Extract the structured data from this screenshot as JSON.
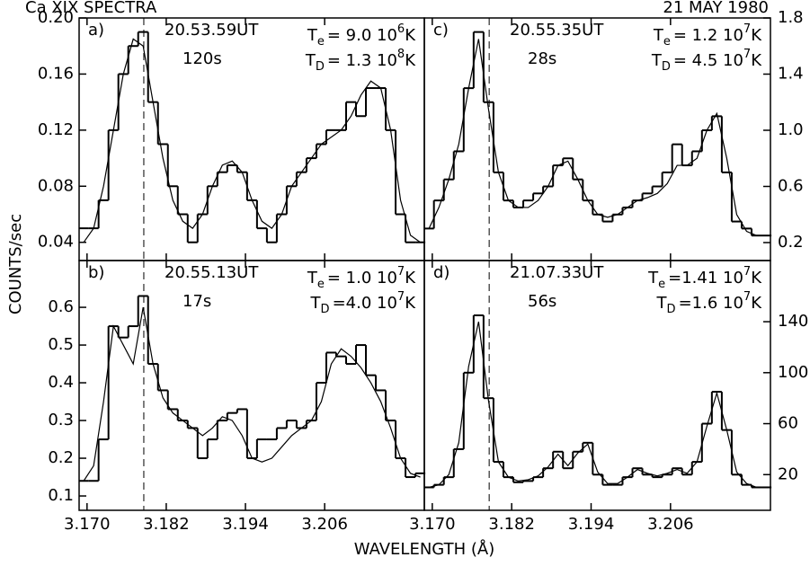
{
  "title": "Ca XIX  SPECTRA",
  "date": "21 MAY 1980",
  "ylabel": "COUNTS/sec",
  "xlabel": "WAVELENGTH (Å)",
  "chart_data": [
    {
      "type": "line",
      "panel": "a)",
      "time": "20.53.59UT",
      "exposure": "120s",
      "te": [
        "T",
        "e",
        "= 9.0 10",
        "6",
        "K"
      ],
      "td": [
        "T",
        "D",
        "= 1.3 10",
        "8",
        "K"
      ],
      "axis_side": "left",
      "ref_x": 3.1786,
      "x": [
        3.1695,
        3.171,
        3.1725,
        3.174,
        3.1755,
        3.177,
        3.1785,
        3.18,
        3.1815,
        3.183,
        3.1845,
        3.186,
        3.1875,
        3.189,
        3.1905,
        3.192,
        3.1935,
        3.195,
        3.1965,
        3.198,
        3.1995,
        3.201,
        3.2025,
        3.204,
        3.2055,
        3.207,
        3.2085,
        3.21,
        3.2115,
        3.213,
        3.2145,
        3.216,
        3.2175,
        3.219,
        3.2205
      ],
      "xlim": [
        3.1688,
        3.2211
      ],
      "xticks": [
        {
          "value": 3.17,
          "label": "3.170"
        },
        {
          "value": 3.182,
          "label": "3.182"
        },
        {
          "value": 3.194,
          "label": "3.194"
        },
        {
          "value": 3.206,
          "label": "3.206"
        }
      ],
      "ylim": [
        0.027,
        0.2
      ],
      "yticks": [
        0.04,
        0.08,
        0.12,
        0.16,
        {
          "value": 0.2,
          "label": "0.20"
        }
      ],
      "series": [
        {
          "drawstyle": "steps-mid",
          "color": "#000000",
          "values": [
            0.05,
            0.05,
            0.07,
            0.12,
            0.16,
            0.18,
            0.19,
            0.14,
            0.11,
            0.08,
            0.06,
            0.04,
            0.06,
            0.08,
            0.09,
            0.095,
            0.09,
            0.07,
            0.05,
            0.04,
            0.06,
            0.08,
            0.09,
            0.1,
            0.11,
            0.12,
            0.12,
            0.14,
            0.13,
            0.15,
            0.15,
            0.12,
            0.06,
            0.04,
            0.04
          ]
        },
        {
          "drawstyle": "default",
          "color": "#000000",
          "values": [
            0.04,
            0.05,
            0.08,
            0.12,
            0.16,
            0.185,
            0.18,
            0.14,
            0.1,
            0.07,
            0.055,
            0.05,
            0.06,
            0.08,
            0.095,
            0.098,
            0.09,
            0.07,
            0.055,
            0.05,
            0.06,
            0.08,
            0.09,
            0.1,
            0.11,
            0.115,
            0.12,
            0.13,
            0.145,
            0.155,
            0.15,
            0.12,
            0.07,
            0.045,
            0.04
          ]
        }
      ]
    },
    {
      "type": "line",
      "panel": "b)",
      "time": "20.55.13UT",
      "exposure": "17s",
      "te": [
        "T",
        "e",
        "= 1.0 10",
        "7",
        "K"
      ],
      "td": [
        "T",
        "D",
        "=4.0 10",
        "7",
        "K"
      ],
      "axis_side": "left",
      "ref_x": 3.1786,
      "x": [
        3.1695,
        3.171,
        3.1725,
        3.174,
        3.1755,
        3.177,
        3.1785,
        3.18,
        3.1815,
        3.183,
        3.1845,
        3.186,
        3.1875,
        3.189,
        3.1905,
        3.192,
        3.1935,
        3.195,
        3.1965,
        3.198,
        3.1995,
        3.201,
        3.2025,
        3.204,
        3.2055,
        3.207,
        3.2085,
        3.21,
        3.2115,
        3.213,
        3.2145,
        3.216,
        3.2175,
        3.219,
        3.2205
      ],
      "xlim": [
        3.1688,
        3.2211
      ],
      "xticks": [
        {
          "value": 3.17,
          "label": "3.170"
        },
        {
          "value": 3.182,
          "label": "3.182"
        },
        {
          "value": 3.194,
          "label": "3.194"
        },
        {
          "value": 3.206,
          "label": "3.206"
        }
      ],
      "ylim": [
        0.062,
        0.724
      ],
      "yticks": [
        0.1,
        0.2,
        0.3,
        0.4,
        0.5,
        0.6
      ],
      "series": [
        {
          "drawstyle": "steps-mid",
          "color": "#000000",
          "values": [
            0.14,
            0.14,
            0.25,
            0.55,
            0.52,
            0.55,
            0.63,
            0.45,
            0.38,
            0.33,
            0.3,
            0.28,
            0.2,
            0.25,
            0.3,
            0.32,
            0.33,
            0.2,
            0.25,
            0.25,
            0.28,
            0.3,
            0.28,
            0.3,
            0.4,
            0.48,
            0.47,
            0.45,
            0.5,
            0.42,
            0.38,
            0.3,
            0.2,
            0.15,
            0.16
          ]
        },
        {
          "drawstyle": "default",
          "color": "#000000",
          "values": [
            0.14,
            0.18,
            0.35,
            0.55,
            0.5,
            0.45,
            0.6,
            0.45,
            0.36,
            0.32,
            0.3,
            0.28,
            0.26,
            0.28,
            0.31,
            0.3,
            0.26,
            0.2,
            0.19,
            0.2,
            0.23,
            0.26,
            0.28,
            0.3,
            0.35,
            0.45,
            0.49,
            0.47,
            0.44,
            0.4,
            0.35,
            0.28,
            0.2,
            0.16,
            0.15
          ]
        }
      ]
    },
    {
      "type": "line",
      "panel": "c)",
      "time": "20.55.35UT",
      "exposure": "28s",
      "te": [
        "T",
        "e",
        "= 1.2 10",
        "7",
        "K"
      ],
      "td": [
        "T",
        "D",
        "= 4.5 10",
        "7",
        "K"
      ],
      "axis_side": "right",
      "ref_x": 3.1786,
      "x": [
        3.1695,
        3.171,
        3.1725,
        3.174,
        3.1755,
        3.177,
        3.1785,
        3.18,
        3.1815,
        3.183,
        3.1845,
        3.186,
        3.1875,
        3.189,
        3.1905,
        3.192,
        3.1935,
        3.195,
        3.1965,
        3.198,
        3.1995,
        3.201,
        3.2025,
        3.204,
        3.2055,
        3.207,
        3.2085,
        3.21,
        3.2115,
        3.213,
        3.2145,
        3.216,
        3.2175,
        3.219,
        3.2205
      ],
      "xlim": [
        3.1688,
        3.2211
      ],
      "xticks": [
        {
          "value": 3.17,
          "label": "3.170"
        },
        {
          "value": 3.182,
          "label": "3.182"
        },
        {
          "value": 3.194,
          "label": "3.194"
        },
        {
          "value": 3.206,
          "label": "3.206"
        }
      ],
      "ylim": [
        0.072,
        1.8
      ],
      "yticks": [
        0.2,
        0.6,
        {
          "value": 1.0,
          "label": "1.0"
        },
        1.4,
        1.8
      ],
      "series": [
        {
          "drawstyle": "steps-mid",
          "color": "#000000",
          "values": [
            0.3,
            0.5,
            0.65,
            0.85,
            1.3,
            1.7,
            1.2,
            0.7,
            0.5,
            0.45,
            0.5,
            0.55,
            0.6,
            0.75,
            0.8,
            0.65,
            0.5,
            0.4,
            0.35,
            0.4,
            0.45,
            0.5,
            0.55,
            0.6,
            0.7,
            0.9,
            0.75,
            0.85,
            1.0,
            1.1,
            0.7,
            0.35,
            0.3,
            0.25,
            0.25
          ]
        },
        {
          "drawstyle": "default",
          "color": "#000000",
          "values": [
            0.3,
            0.45,
            0.65,
            0.9,
            1.3,
            1.65,
            1.15,
            0.7,
            0.5,
            0.45,
            0.45,
            0.5,
            0.6,
            0.75,
            0.78,
            0.65,
            0.5,
            0.4,
            0.38,
            0.4,
            0.45,
            0.5,
            0.52,
            0.55,
            0.62,
            0.75,
            0.75,
            0.8,
            1.0,
            1.12,
            0.8,
            0.4,
            0.28,
            0.25,
            0.25
          ]
        }
      ]
    },
    {
      "type": "line",
      "panel": "d)",
      "time": "21.07.33UT",
      "exposure": "56s",
      "te": [
        "T",
        "e",
        "=1.41 10",
        "7",
        "K"
      ],
      "td": [
        "T",
        "D",
        "=1.6  10",
        "7",
        "K"
      ],
      "axis_side": "right",
      "ref_x": 3.1786,
      "x": [
        3.1695,
        3.171,
        3.1725,
        3.174,
        3.1755,
        3.177,
        3.1785,
        3.18,
        3.1815,
        3.183,
        3.1845,
        3.186,
        3.1875,
        3.189,
        3.1905,
        3.192,
        3.1935,
        3.195,
        3.1965,
        3.198,
        3.1995,
        3.201,
        3.2025,
        3.204,
        3.2055,
        3.207,
        3.2085,
        3.21,
        3.2115,
        3.213,
        3.2145,
        3.216,
        3.2175,
        3.219,
        3.2205
      ],
      "xlim": [
        3.1688,
        3.2211
      ],
      "xticks": [
        {
          "value": 3.17,
          "label": "3.170"
        },
        {
          "value": 3.182,
          "label": "3.182"
        },
        {
          "value": 3.194,
          "label": "3.194"
        },
        {
          "value": 3.206,
          "label": "3.206"
        }
      ],
      "ylim": [
        -8,
        188
      ],
      "yticks": [
        20,
        60,
        100,
        140
      ],
      "series": [
        {
          "drawstyle": "steps-mid",
          "color": "#000000",
          "values": [
            10,
            12,
            18,
            40,
            100,
            145,
            80,
            30,
            18,
            14,
            15,
            18,
            25,
            38,
            25,
            38,
            45,
            20,
            12,
            12,
            18,
            25,
            20,
            18,
            20,
            25,
            20,
            30,
            60,
            85,
            55,
            20,
            12,
            10,
            10
          ]
        },
        {
          "drawstyle": "default",
          "color": "#000000",
          "values": [
            10,
            12,
            20,
            45,
            105,
            140,
            78,
            30,
            18,
            15,
            16,
            19,
            26,
            36,
            27,
            37,
            44,
            22,
            13,
            13,
            18,
            24,
            21,
            19,
            21,
            24,
            21,
            30,
            58,
            84,
            55,
            22,
            13,
            10,
            10
          ]
        }
      ]
    }
  ]
}
